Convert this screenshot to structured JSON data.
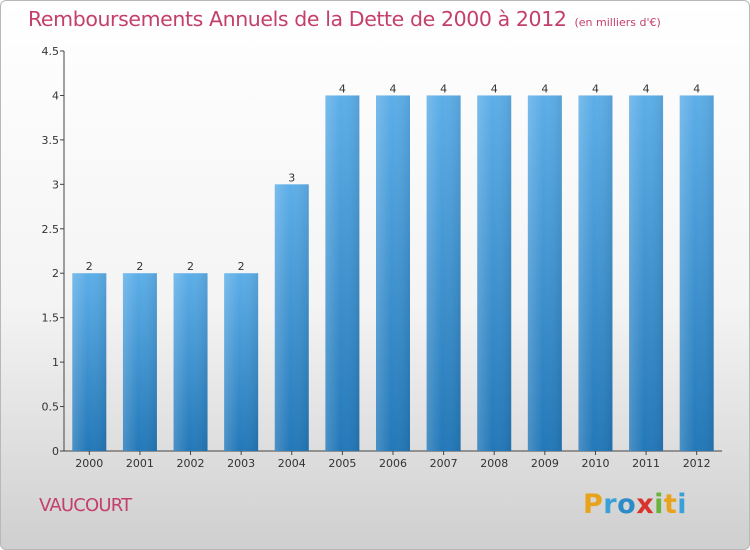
{
  "header": {
    "title": "Remboursements Annuels de la Dette de 2000 à 2012",
    "subtitle": "(en milliers d'€)"
  },
  "footer": {
    "place": "VAUCOURT",
    "logo": {
      "text": "Proxiti",
      "letters": [
        "P",
        "r",
        "o",
        "x",
        "i",
        "t",
        "i"
      ],
      "colors": [
        "#e8a21b",
        "#3aa0d8",
        "#2d8cc8",
        "#d9342b",
        "#6bb33b",
        "#e8a21b",
        "#3aa0d8"
      ]
    }
  },
  "chart_data": {
    "type": "bar",
    "title": "Remboursements Annuels de la Dette de 2000 à 2012",
    "subtitle": "(en milliers d'€)",
    "categories": [
      "2000",
      "2001",
      "2002",
      "2003",
      "2004",
      "2005",
      "2006",
      "2007",
      "2008",
      "2009",
      "2010",
      "2011",
      "2012"
    ],
    "values": [
      2,
      2,
      2,
      2,
      3,
      4,
      4,
      4,
      4,
      4,
      4,
      4,
      4
    ],
    "data_labels": [
      "2",
      "2",
      "2",
      "2",
      "3",
      "4",
      "4",
      "4",
      "4",
      "4",
      "4",
      "4",
      "4"
    ],
    "ylim": [
      0,
      4.5
    ],
    "yticks": [
      0,
      0.5,
      1,
      1.5,
      2,
      2.5,
      3,
      3.5,
      4,
      4.5
    ],
    "ytick_labels": [
      "0",
      "0.5",
      "1",
      "1.5",
      "2",
      "2.5",
      "3",
      "3.5",
      "4",
      "4.5"
    ],
    "xlabel": "",
    "ylabel": "",
    "grid": false,
    "bar_color_top": "#5daee8",
    "bar_color_bottom": "#2378b8"
  }
}
